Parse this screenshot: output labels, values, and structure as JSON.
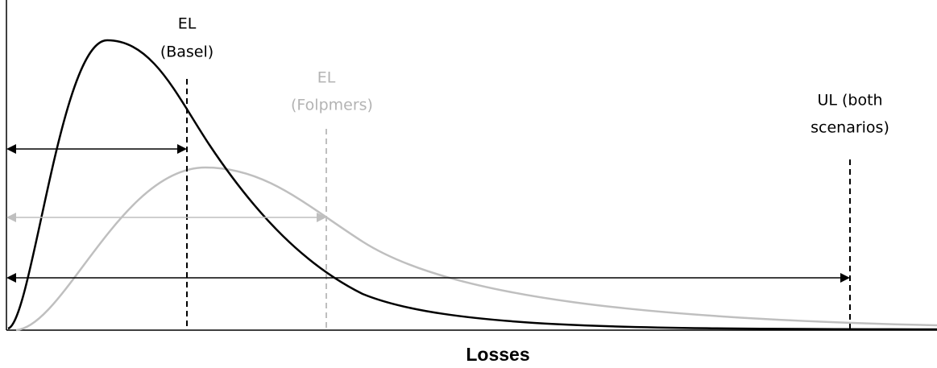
{
  "markers": [
    {
      "lines": [
        "EL",
        "(Basel)"
      ]
    },
    {
      "lines": [
        "EL",
        "(Folpmers)"
      ]
    },
    {
      "lines": [
        "UL (both",
        "scenarios)"
      ]
    }
  ],
  "axis_label": "Losses"
}
